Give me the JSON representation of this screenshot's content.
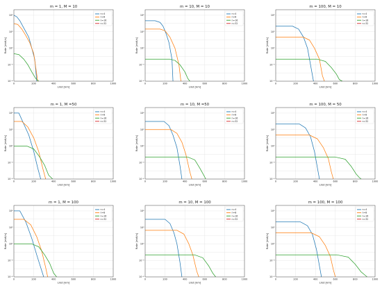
{
  "chart_data": [
    {
      "type": "line",
      "title": "m = 1, M = 10",
      "xlabel": "Llist [km]",
      "ylabel": "Rate [ebit/s]",
      "xlim": [
        0,
        1000
      ],
      "ylim": [
        1e-06,
        10000000
      ],
      "yscale": "log",
      "grid": true,
      "legend_position": "top-right",
      "xticks": [
        0,
        200,
        400,
        600,
        800,
        1000
      ],
      "yticks": [
        "10⁻⁶",
        "10⁻³",
        "10⁰",
        "10³",
        "10⁶"
      ],
      "series": [
        {
          "name": "n=4",
          "color": "#1f77b4",
          "x": [
            0,
            30,
            60,
            90,
            120,
            150,
            180,
            210,
            230
          ],
          "y": [
            1000000,
            500000,
            100000,
            10000,
            1000,
            100,
            1,
            0.01,
            1e-06
          ]
        },
        {
          "name": "n=8",
          "color": "#ff7f0e",
          "x": [
            0,
            40,
            80,
            120,
            160,
            200,
            240
          ],
          "y": [
            30000,
            20000,
            3000,
            200,
            10,
            0.1,
            1e-06
          ]
        },
        {
          "name": "n=16",
          "color": "#2ca02c",
          "x": [
            0,
            50,
            100,
            140,
            180,
            220,
            250
          ],
          "y": [
            0.1,
            0.07,
            0.01,
            0.001,
            5e-05,
            3e-06,
            1e-06
          ]
        },
        {
          "name": "n=32",
          "color": "#d62728",
          "x": [],
          "y": []
        }
      ]
    },
    {
      "type": "line",
      "title": "m = 10, M = 10",
      "xlabel": "Llist [km]",
      "ylabel": "Rate [ebit/s]",
      "xlim": [
        0,
        1000
      ],
      "ylim": [
        1e-06,
        10000000
      ],
      "yscale": "log",
      "grid": true,
      "legend_position": "top-right",
      "xticks": [
        0,
        200,
        400,
        600,
        800,
        1000
      ],
      "yticks": [
        "10⁻⁶",
        "10⁻³",
        "10⁰",
        "10³",
        "10⁶"
      ],
      "series": [
        {
          "name": "n=4",
          "color": "#1f77b4",
          "x": [
            0,
            100,
            150,
            180,
            210,
            240,
            270,
            280
          ],
          "y": [
            100000,
            100000,
            50000,
            10000,
            500,
            10,
            0.01,
            1e-06
          ]
        },
        {
          "name": "n=8",
          "color": "#ff7f0e",
          "x": [
            0,
            150,
            200,
            250,
            300,
            340,
            360
          ],
          "y": [
            3000,
            3000,
            1500,
            100,
            1,
            0.001,
            1e-06
          ]
        },
        {
          "name": "n=16",
          "color": "#2ca02c",
          "x": [
            0,
            250,
            300,
            350,
            400,
            430,
            450
          ],
          "y": [
            0.01,
            0.01,
            0.006,
            0.001,
            5e-05,
            3e-06,
            1e-06
          ]
        },
        {
          "name": "n=32",
          "color": "#d62728",
          "x": [],
          "y": []
        }
      ]
    },
    {
      "type": "line",
      "title": "m = 100, M = 10",
      "xlabel": "Llist [km]",
      "ylabel": "Rate [ebit/s]",
      "xlim": [
        0,
        1000
      ],
      "ylim": [
        1e-06,
        10000000
      ],
      "yscale": "log",
      "grid": true,
      "legend_position": "top-right",
      "xticks": [
        0,
        200,
        400,
        600,
        800,
        1000
      ],
      "yticks": [
        "10⁻⁶",
        "10⁻³",
        "10⁰",
        "10³",
        "10⁶"
      ],
      "series": [
        {
          "name": "n=4",
          "color": "#1f77b4",
          "x": [
            0,
            170,
            230,
            280,
            320,
            350,
            380
          ],
          "y": [
            10000,
            10000,
            3000,
            100,
            1,
            0.001,
            1e-06
          ]
        },
        {
          "name": "n=8",
          "color": "#ff7f0e",
          "x": [
            0,
            280,
            340,
            390,
            440,
            470,
            490
          ],
          "y": [
            100,
            100,
            30,
            1,
            0.01,
            1e-05,
            1e-06
          ]
        },
        {
          "name": "n=16",
          "color": "#2ca02c",
          "x": [
            0,
            420,
            500,
            560,
            610,
            640,
            670
          ],
          "y": [
            0.01,
            0.01,
            0.004,
            0.0003,
            2e-05,
            2e-06,
            1e-06
          ]
        },
        {
          "name": "n=32",
          "color": "#d62728",
          "x": [],
          "y": []
        }
      ]
    },
    {
      "type": "line",
      "title": "m = 1, M =50",
      "xlabel": "Llist [km]",
      "ylabel": "Rate [ebit/s]",
      "xlim": [
        0,
        1000
      ],
      "ylim": [
        1e-06,
        10000000
      ],
      "yscale": "log",
      "grid": true,
      "legend_position": "top-right",
      "xticks": [
        0,
        200,
        400,
        600,
        800,
        1000
      ],
      "yticks": [
        "10⁻⁶",
        "10⁻³",
        "10⁰",
        "10³",
        "10⁶"
      ],
      "series": [
        {
          "name": "n=4",
          "color": "#1f77b4",
          "x": [
            0,
            50,
            100,
            150,
            200,
            240,
            270
          ],
          "y": [
            1000000,
            1000000,
            10000,
            100,
            0.1,
            0.0001,
            1e-06
          ]
        },
        {
          "name": "n=8",
          "color": "#ff7f0e",
          "x": [
            0,
            80,
            140,
            200,
            250,
            290,
            320
          ],
          "y": [
            30000,
            30000,
            3000,
            30,
            0.1,
            0.0001,
            1e-06
          ]
        },
        {
          "name": "n=16",
          "color": "#2ca02c",
          "x": [
            0,
            130,
            200,
            260,
            310,
            350,
            390
          ],
          "y": [
            1,
            1,
            0.3,
            0.01,
            0.0003,
            5e-06,
            1e-06
          ]
        },
        {
          "name": "n=32",
          "color": "#d62728",
          "x": [],
          "y": []
        }
      ]
    },
    {
      "type": "line",
      "title": "m = 10, M =50",
      "xlabel": "Llist [km]",
      "ylabel": "Rate [ebit/s]",
      "xlim": [
        0,
        1000
      ],
      "ylim": [
        1e-06,
        10000000
      ],
      "yscale": "log",
      "grid": true,
      "legend_position": "top-right",
      "xticks": [
        0,
        200,
        400,
        600,
        800,
        1000
      ],
      "yticks": [
        "10⁻⁶",
        "10⁻³",
        "10⁰",
        "10³",
        "10⁶"
      ],
      "series": [
        {
          "name": "n=4",
          "color": "#1f77b4",
          "x": [
            0,
            190,
            240,
            280,
            320,
            350,
            370
          ],
          "y": [
            30000,
            30000,
            5000,
            100,
            0.5,
            0.0003,
            1e-06
          ]
        },
        {
          "name": "n=8",
          "color": "#ff7f0e",
          "x": [
            0,
            260,
            320,
            370,
            410,
            450,
            470
          ],
          "y": [
            1000,
            1000,
            200,
            5,
            0.03,
            2e-05,
            1e-06
          ]
        },
        {
          "name": "n=16",
          "color": "#2ca02c",
          "x": [
            0,
            430,
            500,
            550,
            590,
            610
          ],
          "y": [
            0.01,
            0.01,
            0.003,
            0.0001,
            5e-06,
            1e-06
          ]
        },
        {
          "name": "n=32",
          "color": "#d62728",
          "x": [],
          "y": []
        }
      ]
    },
    {
      "type": "line",
      "title": "m = 100, M = 50",
      "xlabel": "Llist [km]",
      "ylabel": "Rate [ebit/s]",
      "xlim": [
        0,
        1000
      ],
      "ylim": [
        1e-06,
        10000000
      ],
      "yscale": "log",
      "grid": true,
      "legend_position": "top-right",
      "xticks": [
        0,
        200,
        400,
        600,
        800,
        1000
      ],
      "yticks": [
        "10⁻⁶",
        "10⁻³",
        "10⁰",
        "10³",
        "10⁶"
      ],
      "series": [
        {
          "name": "n=4",
          "color": "#1f77b4",
          "x": [
            0,
            240,
            300,
            350,
            390,
            420,
            440
          ],
          "y": [
            10000,
            10000,
            2000,
            50,
            0.1,
            0.0001,
            1e-06
          ]
        },
        {
          "name": "n=8",
          "color": "#ff7f0e",
          "x": [
            0,
            340,
            420,
            480,
            530,
            560,
            580
          ],
          "y": [
            100,
            100,
            20,
            0.5,
            0.005,
            2e-05,
            1e-06
          ]
        },
        {
          "name": "n=16",
          "color": "#2ca02c",
          "x": [
            0,
            600,
            700,
            760,
            810,
            840,
            860
          ],
          "y": [
            0.01,
            0.01,
            0.004,
            0.0002,
            8e-06,
            2e-06,
            1e-06
          ]
        },
        {
          "name": "n=32",
          "color": "#d62728",
          "x": [],
          "y": []
        }
      ]
    },
    {
      "type": "line",
      "title": "m = 1, M = 100",
      "xlabel": "Llist [km]",
      "ylabel": "Rate [ebit/s]",
      "xlim": [
        0,
        1000
      ],
      "ylim": [
        1e-06,
        10000000
      ],
      "yscale": "log",
      "grid": true,
      "legend_position": "top-right",
      "xticks": [
        0,
        200,
        400,
        600,
        800,
        1000
      ],
      "yticks": [
        "10⁻⁶",
        "10⁻³",
        "10⁰",
        "10³",
        "10⁶"
      ],
      "series": [
        {
          "name": "n=4",
          "color": "#1f77b4",
          "x": [
            0,
            60,
            120,
            180,
            230,
            270,
            300
          ],
          "y": [
            1000000,
            1000000,
            10000,
            10,
            0.01,
            5e-05,
            1e-06
          ]
        },
        {
          "name": "n=8",
          "color": "#ff7f0e",
          "x": [
            0,
            100,
            170,
            230,
            280,
            320,
            340
          ],
          "y": [
            30000,
            30000,
            3000,
            20,
            0.05,
            5e-05,
            1e-06
          ]
        },
        {
          "name": "n=16",
          "color": "#2ca02c",
          "x": [
            0,
            180,
            250,
            310,
            360,
            400,
            430
          ],
          "y": [
            1,
            1,
            0.3,
            0.01,
            0.0003,
            5e-06,
            1e-06
          ]
        },
        {
          "name": "n=32",
          "color": "#d62728",
          "x": [],
          "y": []
        }
      ]
    },
    {
      "type": "line",
      "title": "m = 10, M = 100",
      "xlabel": "Llist [km]",
      "ylabel": "Rate [ebit/s]",
      "xlim": [
        0,
        1000
      ],
      "ylim": [
        1e-06,
        10000000
      ],
      "yscale": "log",
      "grid": true,
      "legend_position": "top-right",
      "xticks": [
        0,
        200,
        400,
        600,
        800,
        1000
      ],
      "yticks": [
        "10⁻⁶",
        "10⁻³",
        "10⁰",
        "10³",
        "10⁶"
      ],
      "series": [
        {
          "name": "n=4",
          "color": "#1f77b4",
          "x": [
            0,
            200,
            250,
            290,
            320,
            350,
            370
          ],
          "y": [
            30000,
            30000,
            5000,
            100,
            1,
            0.0005,
            1e-06
          ]
        },
        {
          "name": "n=8",
          "color": "#ff7f0e",
          "x": [
            0,
            320,
            390,
            440,
            480,
            520,
            540
          ],
          "y": [
            300,
            300,
            60,
            1,
            0.01,
            1e-05,
            1e-06
          ]
        },
        {
          "name": "n=16",
          "color": "#2ca02c",
          "x": [
            0,
            500,
            580,
            640,
            680,
            710
          ],
          "y": [
            0.01,
            0.01,
            0.003,
            0.0001,
            5e-06,
            1e-06
          ]
        },
        {
          "name": "n=32",
          "color": "#d62728",
          "x": [],
          "y": []
        }
      ]
    },
    {
      "type": "line",
      "title": "m = 100, M = 100",
      "xlabel": "Llist [km]",
      "ylabel": "Rate [ebit/s]",
      "xlim": [
        0,
        1000
      ],
      "ylim": [
        1e-06,
        10000000
      ],
      "yscale": "log",
      "grid": true,
      "legend_position": "top-right",
      "xticks": [
        0,
        200,
        400,
        600,
        800,
        1000
      ],
      "yticks": [
        "10⁻⁶",
        "10⁻³",
        "10⁰",
        "10³",
        "10⁶"
      ],
      "series": [
        {
          "name": "n=4",
          "color": "#1f77b4",
          "x": [
            0,
            250,
            320,
            370,
            410,
            440,
            460
          ],
          "y": [
            10000,
            10000,
            2000,
            50,
            0.1,
            0.0001,
            1e-06
          ]
        },
        {
          "name": "n=8",
          "color": "#ff7f0e",
          "x": [
            0,
            360,
            440,
            500,
            550,
            580,
            600
          ],
          "y": [
            100,
            100,
            20,
            0.5,
            0.005,
            2e-05,
            1e-06
          ]
        },
        {
          "name": "n=16",
          "color": "#2ca02c",
          "x": [
            0,
            620,
            730,
            800,
            860,
            900,
            920
          ],
          "y": [
            0.01,
            0.01,
            0.004,
            0.0002,
            8e-06,
            2e-06,
            1e-06
          ]
        },
        {
          "name": "n=32",
          "color": "#d62728",
          "x": [],
          "y": []
        }
      ]
    }
  ]
}
